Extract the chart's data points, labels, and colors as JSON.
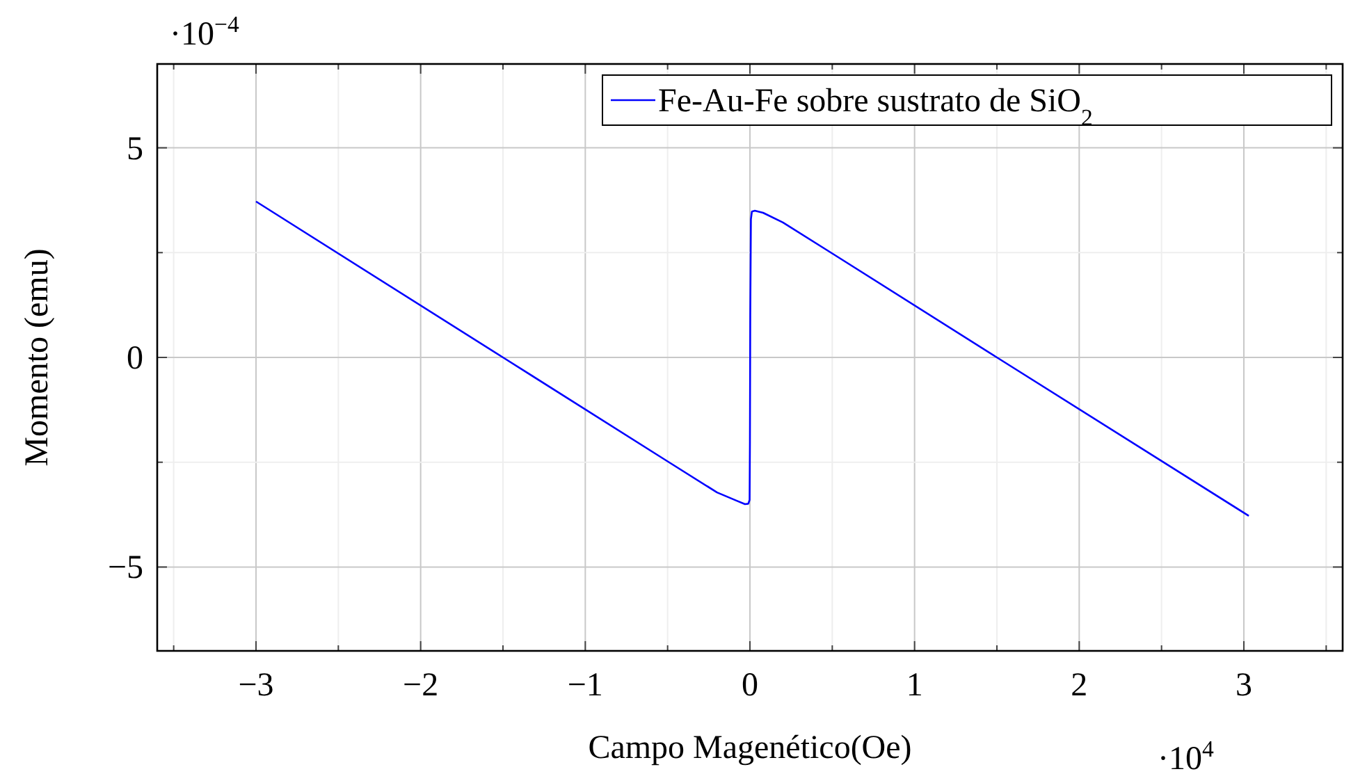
{
  "chart_data": {
    "type": "line",
    "xlabel": "Campo Magenético(Oe)",
    "ylabel": "Momento (emu)",
    "annotations": [
      "·10$^{−4}$",
      "·10$^{4}$"
    ],
    "xlim": [
      -3.6,
      3.6
    ],
    "ylim": [
      -7,
      7
    ],
    "xticks": [
      {
        "value": -3.5,
        "label": null
      },
      {
        "value": -3,
        "label": "−3"
      },
      {
        "value": -2.5,
        "label": null
      },
      {
        "value": -2,
        "label": "−2"
      },
      {
        "value": -1.5,
        "label": null
      },
      {
        "value": -1,
        "label": "−1"
      },
      {
        "value": -0.5,
        "label": null
      },
      0,
      {
        "value": 0.5,
        "label": null
      },
      1,
      {
        "value": 1.5,
        "label": null
      },
      2,
      {
        "value": 2.5,
        "label": null
      },
      3,
      {
        "value": 3.5,
        "label": null
      }
    ],
    "yticks": [
      {
        "value": -5,
        "label": "−5"
      },
      {
        "value": -2.5,
        "label": null
      },
      0,
      {
        "value": 2.5,
        "label": null
      },
      5
    ],
    "grid": true,
    "legend": "top right",
    "line_style": "solid",
    "marker": "none",
    "series": [
      {
        "name": "Fe-Au-Fe sobre sustrato de SiO$_{2}$",
        "color": "#0000ff",
        "x": [
          -3,
          -1.5,
          -0.5,
          -0.2,
          -0.08,
          -0.03,
          -0.01,
          -0.002,
          0,
          0.002,
          0.006,
          0.012,
          0.03,
          0.08,
          0.2,
          0.5,
          1.5,
          3.03
        ],
        "values": [
          3.72,
          0,
          -2.48,
          -3.22,
          -3.42,
          -3.5,
          -3.49,
          -3.4,
          -2,
          1,
          3.3,
          3.48,
          3.5,
          3.45,
          3.22,
          2.48,
          0,
          -3.78
        ]
      }
    ]
  }
}
